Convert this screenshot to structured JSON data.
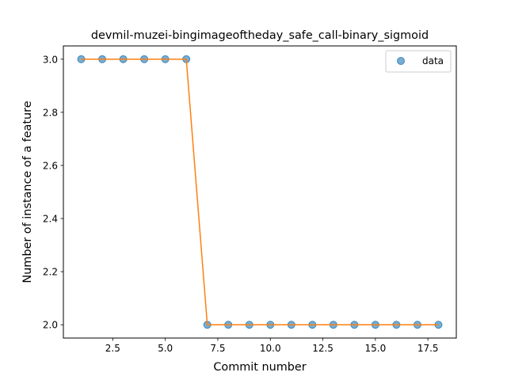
{
  "chart_data": {
    "type": "scatter",
    "title": "devmil-muzei-bingimageoftheday_safe_call-binary_sigmoid",
    "xlabel": "Commit number",
    "ylabel": "Number of instance of a feature",
    "xlim": [
      0.15,
      18.85
    ],
    "ylim": [
      1.95,
      3.05
    ],
    "x_ticks": [
      2.5,
      5.0,
      7.5,
      10.0,
      12.5,
      15.0,
      17.5
    ],
    "x_tick_labels": [
      "2.5",
      "5.0",
      "7.5",
      "10.0",
      "12.5",
      "15.0",
      "17.5"
    ],
    "y_ticks": [
      2.0,
      2.2,
      2.4,
      2.6,
      2.8,
      3.0
    ],
    "y_tick_labels": [
      "2.0",
      "2.2",
      "2.4",
      "2.6",
      "2.8",
      "3.0"
    ],
    "grid": false,
    "legend_position": "top-right",
    "series": [
      {
        "name": "data",
        "kind": "scatter",
        "color": "#1f77b4",
        "x": [
          1,
          2,
          3,
          4,
          5,
          6,
          7,
          8,
          9,
          10,
          11,
          12,
          13,
          14,
          15,
          16,
          17,
          18
        ],
        "y": [
          3,
          3,
          3,
          3,
          3,
          3,
          2,
          2,
          2,
          2,
          2,
          2,
          2,
          2,
          2,
          2,
          2,
          2
        ]
      },
      {
        "kind": "line",
        "color": "#ff7f0e",
        "x": [
          1,
          2,
          3,
          4,
          5,
          6,
          7,
          8,
          9,
          10,
          11,
          12,
          13,
          14,
          15,
          16,
          17,
          18
        ],
        "y": [
          3,
          3,
          3,
          3,
          3,
          3,
          2,
          2,
          2,
          2,
          2,
          2,
          2,
          2,
          2,
          2,
          2,
          2
        ]
      }
    ]
  }
}
